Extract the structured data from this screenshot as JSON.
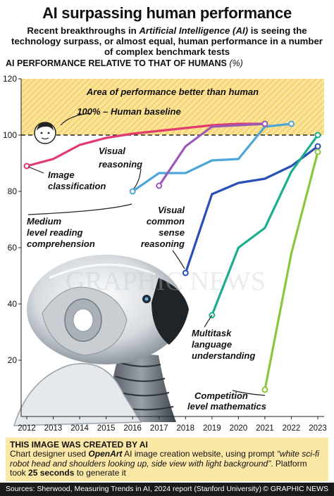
{
  "header": {
    "title": "AI surpassing human performance",
    "subtitle_before": "Recent breakthroughs in ",
    "subtitle_italic": "Artificial Intelligence (AI)",
    "subtitle_after": " is seeing the technology surpass, or almost equal, human performance in a number of complex benchmark tests",
    "chart_heading": "AI PERFORMANCE RELATIVE TO THAT OF HUMANS",
    "chart_unit": "(%)"
  },
  "chart_data": {
    "type": "line",
    "ylim": [
      0,
      120
    ],
    "xlim": [
      2012,
      2023
    ],
    "y_ticks": [
      20,
      40,
      60,
      80,
      100,
      120
    ],
    "x_ticks": [
      "2012",
      "2013",
      "2014",
      "2015",
      "2016",
      "2017",
      "2018",
      "2019",
      "2020",
      "2021",
      "2022",
      "2023"
    ],
    "band_label": "Area of performance better than human",
    "baseline_label": "100% – Human baseline",
    "baseline_value": 100,
    "grid": false,
    "series": [
      {
        "name": "Image classification",
        "color": "#e03a6e",
        "x": [
          2012,
          2013,
          2014,
          2015,
          2016,
          2017,
          2018,
          2019,
          2020,
          2021
        ],
        "y": [
          89,
          91.5,
          96.5,
          99,
          100.5,
          101.5,
          102.5,
          103.5,
          104,
          104
        ]
      },
      {
        "name": "Visual reasoning",
        "color": "#4da6d8",
        "x": [
          2016,
          2017,
          2018,
          2019,
          2020,
          2021,
          2022
        ],
        "y": [
          80,
          86.5,
          86.5,
          91,
          91.5,
          103,
          104
        ]
      },
      {
        "name": "Medium level reading comprehension",
        "color": "#9b59b6",
        "x": [
          2017,
          2018,
          2019,
          2020,
          2021
        ],
        "y": [
          82,
          96,
          103,
          103.5,
          104
        ]
      },
      {
        "name": "Visual common sense reasoning",
        "color": "#2a4fb8",
        "x": [
          2018,
          2019,
          2020,
          2021,
          2022,
          2023
        ],
        "y": [
          51,
          79,
          83,
          84.5,
          89,
          96
        ]
      },
      {
        "name": "Multitask language understanding",
        "color": "#1bae8e",
        "x": [
          2019,
          2020,
          2021,
          2022,
          2023
        ],
        "y": [
          36,
          60,
          67,
          87,
          100
        ]
      },
      {
        "name": "Competition level mathematics",
        "color": "#8cc63f",
        "x": [
          2021,
          2022,
          2023
        ],
        "y": [
          9.5,
          58,
          94
        ]
      }
    ]
  },
  "labels": {
    "image_classification_1": "Image",
    "image_classification_2": "classification",
    "visual_reasoning_1": "Visual",
    "visual_reasoning_2": "reasoning",
    "reading_1": "Medium",
    "reading_2": "level reading",
    "reading_3": "comprehension",
    "vcsr_1": "Visual",
    "vcsr_2": "common",
    "vcsr_3": "sense",
    "vcsr_4": "reasoning",
    "mmlu_1": "Multitask",
    "mmlu_2": "language",
    "mmlu_3": "understanding",
    "math_1": "Competition",
    "math_2": "level mathematics"
  },
  "watermark": "GRAPHIC NEWS",
  "note": {
    "title": "THIS IMAGE WAS CREATED BY AI",
    "line_a": "Chart designer used ",
    "brand": "OpenArt",
    "line_b": " AI image creation website, using prompt",
    "prompt": "“white sci-fi robot head and shoulders looking up, side view with light background”",
    "line_c": ". Platform took ",
    "seconds": "25 seconds",
    "line_d": " to generate it"
  },
  "footer": {
    "sources": "Sources: Sherwood, Measuring Trends in AI, 2024 report (Stanford University)",
    "credit": "© GRAPHIC NEWS"
  }
}
